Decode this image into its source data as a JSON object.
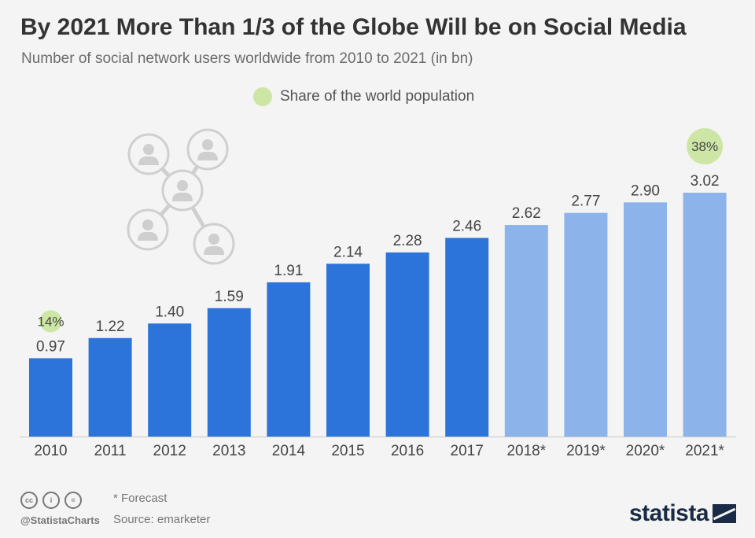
{
  "header": {
    "title": "By 2021 More Than 1/3 of the Globe Will be on Social Media",
    "subtitle": "Number of social network users worldwide from 2010 to 2021 (in bn)"
  },
  "legend": {
    "label": "Share of the world population",
    "color": "#cde6a6"
  },
  "footer": {
    "handle": "@StatistaCharts",
    "note": "* Forecast",
    "source": "Source: emarketer",
    "brand": "statista",
    "icons": [
      "cc-icon",
      "attribution-icon",
      "no-derivatives-icon"
    ]
  },
  "colors": {
    "actual": "#2c74d9",
    "forecast": "#8db4ea",
    "share_bubble": "#cde6a6",
    "label_text": "#444444",
    "axis": "#c8c8c8",
    "illustration": "#cfcfcf"
  },
  "illustration": {
    "icon": "social-network-people-icon"
  },
  "chart_data": {
    "type": "bar",
    "categories": [
      "2010",
      "2011",
      "2012",
      "2013",
      "2014",
      "2015",
      "2016",
      "2017",
      "2018*",
      "2019*",
      "2020*",
      "2021*"
    ],
    "values": [
      0.97,
      1.22,
      1.4,
      1.59,
      1.91,
      2.14,
      2.28,
      2.46,
      2.62,
      2.77,
      2.9,
      3.02
    ],
    "value_labels": [
      "0.97",
      "1.22",
      "1.40",
      "1.59",
      "1.91",
      "2.14",
      "2.28",
      "2.46",
      "2.62",
      "2.77",
      "2.90",
      "3.02"
    ],
    "forecast": [
      false,
      false,
      false,
      false,
      false,
      false,
      false,
      false,
      true,
      true,
      true,
      true
    ],
    "share_annotations": [
      {
        "category": "2010",
        "label": "14%"
      },
      {
        "category": "2021*",
        "label": "38%"
      }
    ],
    "title": "By 2021 More Than 1/3 of the Globe Will be on Social Media",
    "ylim": [
      0,
      3.02
    ],
    "grid": false
  }
}
